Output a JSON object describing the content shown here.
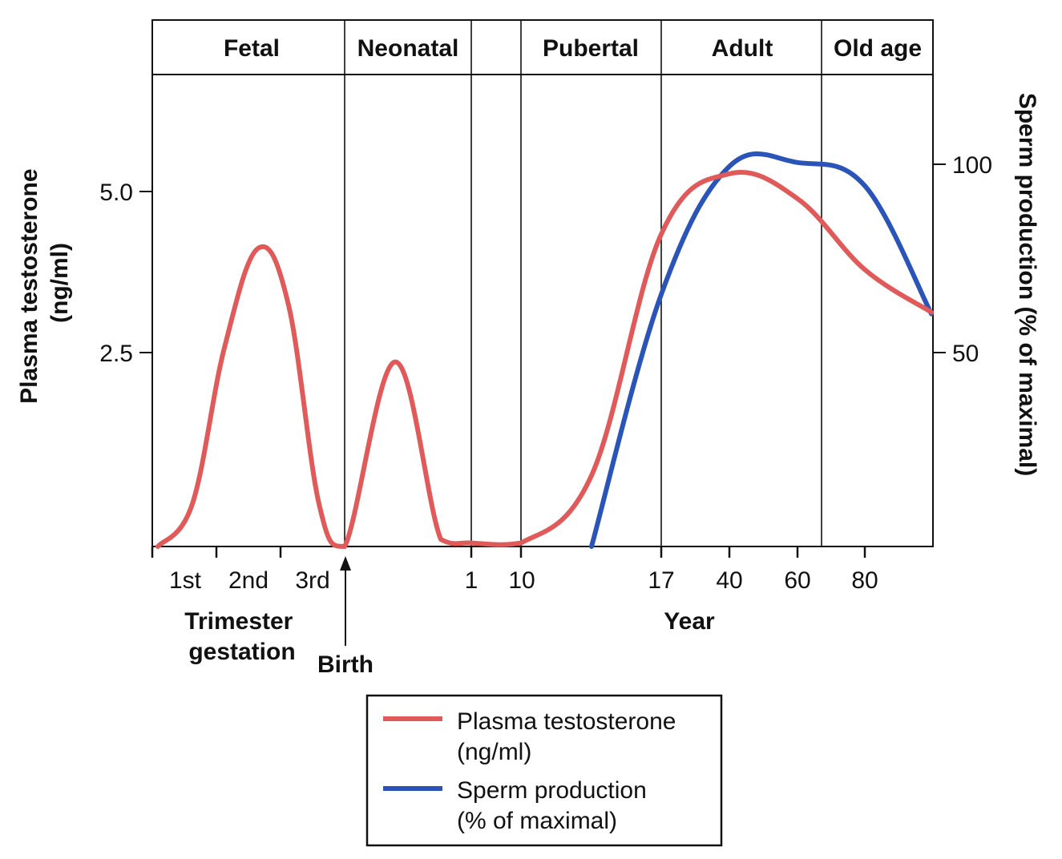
{
  "chart_data": {
    "type": "line",
    "phases": [
      "Fetal",
      "Neonatal",
      "",
      "Pubertal",
      "Adult",
      "Old age"
    ],
    "x_ticks": [
      "1st",
      "2nd",
      "3rd",
      "1",
      "10",
      "17",
      "40",
      "60",
      "80"
    ],
    "x_group_labels": {
      "trimester": "Trimester\ngestation",
      "birth": "Birth",
      "year": "Year"
    },
    "ylabel_left": "Plasma testosterone\n(ng/ml)",
    "ylabel_right": "Sperm production (% of maximal)",
    "y_left_ticks": [
      "2.5",
      "5.0"
    ],
    "y_right_ticks": [
      "50",
      "100"
    ],
    "ylim_left": [
      0,
      7.3
    ],
    "ylim_right": [
      0,
      140
    ],
    "series": [
      {
        "name": "Plasma testosterone\n(ng/ml)",
        "color": "#e05a5a",
        "axis": "left",
        "points": [
          [
            "gestation start",
            0.0
          ],
          [
            "1st trimester",
            0.6
          ],
          [
            "1st–2nd",
            2.8
          ],
          [
            "2nd trimester",
            4.2
          ],
          [
            "2nd–3rd",
            3.4
          ],
          [
            "late 3rd",
            0.6
          ],
          [
            "birth",
            0.0
          ],
          [
            "neonatal peak",
            2.6
          ],
          [
            "neonatal end",
            0.1
          ],
          [
            "1",
            0.05
          ],
          [
            "10",
            0.05
          ],
          [
            "pubertal mid",
            1.0
          ],
          [
            "17",
            4.4
          ],
          [
            "40",
            5.25
          ],
          [
            "60",
            4.9
          ],
          [
            "80",
            3.9
          ],
          [
            "end",
            3.3
          ]
        ]
      },
      {
        "name": "Sperm production\n(% of maximal)",
        "color": "#2a54b8",
        "axis": "right",
        "points": [
          [
            "pubertal mid",
            0
          ],
          [
            "17",
            65
          ],
          [
            "40",
            98
          ],
          [
            "60",
            99
          ],
          [
            "80",
            93
          ],
          [
            "end",
            60
          ]
        ]
      }
    ],
    "legend_position": "bottom-center"
  }
}
